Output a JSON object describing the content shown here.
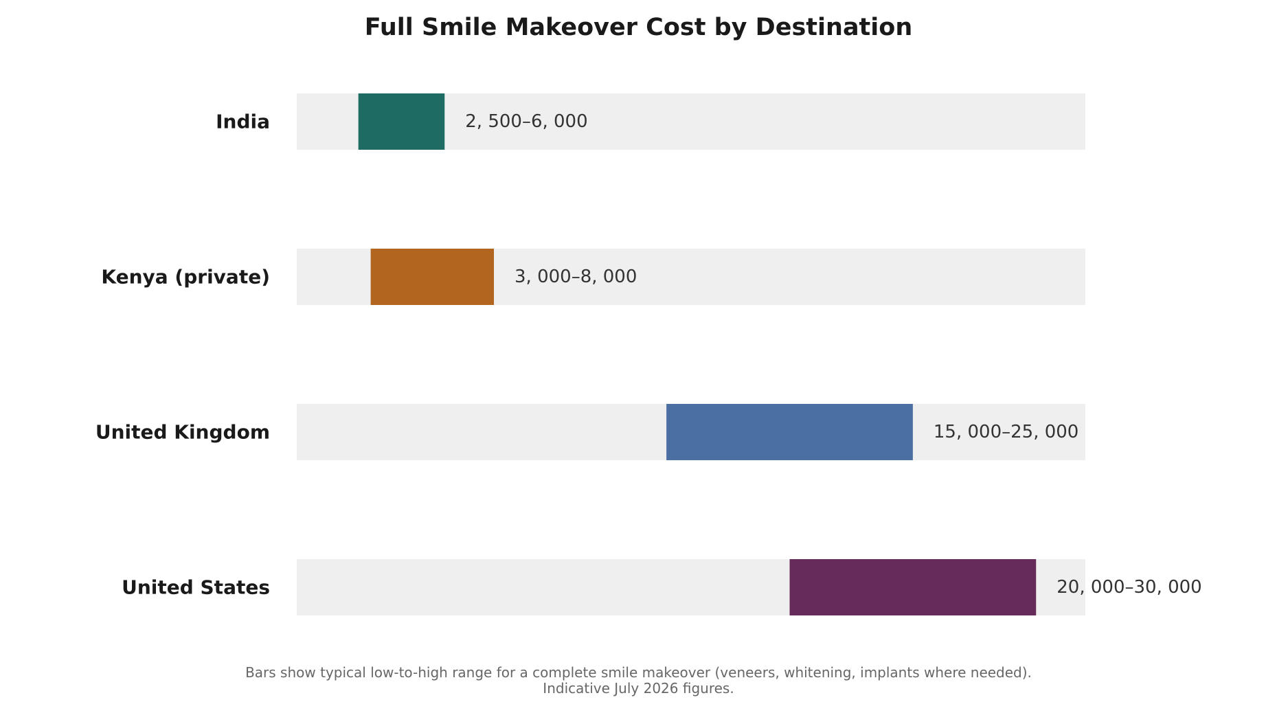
{
  "chart_data": {
    "type": "bar",
    "subtype": "range",
    "title": "Full Smile Makeover Cost by Destination",
    "xlabel": "",
    "ylabel": "",
    "xlim": [
      0,
      32000
    ],
    "grid": false,
    "categories": [
      "India",
      "Kenya (private)",
      "United Kingdom",
      "United States"
    ],
    "ranges": [
      {
        "low": 2500,
        "high": 6000,
        "color": "#1d6b62",
        "label": "2, 500–6, 000"
      },
      {
        "low": 3000,
        "high": 8000,
        "color": "#b2651f",
        "label": "3, 000–8, 000"
      },
      {
        "low": 15000,
        "high": 25000,
        "color": "#4b6ea3",
        "label": "15, 000–25, 000"
      },
      {
        "low": 20000,
        "high": 30000,
        "color": "#672b5a",
        "label": "20, 000–30, 000"
      }
    ],
    "track_color": "#efefef",
    "footnote": [
      "Bars show typical low-to-high range for a complete smile makeover (veneers, whitening, implants where needed).",
      "Indicative July 2026 figures."
    ]
  }
}
